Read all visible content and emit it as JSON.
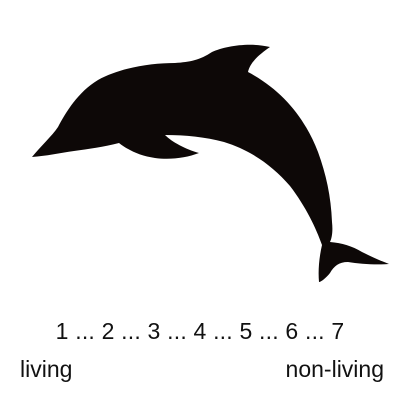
{
  "image": {
    "icon": "dolphin-silhouette-icon",
    "fill_color": "#0d0807"
  },
  "scale": {
    "points": [
      "1",
      "2",
      "3",
      "4",
      "5",
      "6",
      "7"
    ],
    "separator": " ... ",
    "left_anchor": "living",
    "right_anchor": "non-living"
  }
}
